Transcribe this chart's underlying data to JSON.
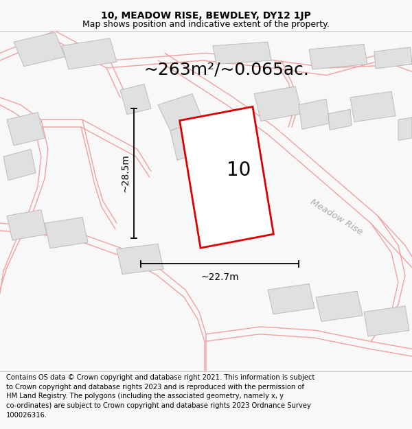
{
  "title_line1": "10, MEADOW RISE, BEWDLEY, DY12 1JP",
  "title_line2": "Map shows position and indicative extent of the property.",
  "area_text": "~263m²/~0.065ac.",
  "dim_width": "~22.7m",
  "dim_height": "~28.5m",
  "label_number": "10",
  "road_label": "Meadow Rise",
  "footer_lines": [
    "Contains OS data © Crown copyright and database right 2021. This information is subject",
    "to Crown copyright and database rights 2023 and is reproduced with the permission of",
    "HM Land Registry. The polygons (including the associated geometry, namely x, y",
    "co-ordinates) are subject to Crown copyright and database rights 2023 Ordnance Survey",
    "100026316."
  ],
  "bg_color": "#f8f8f8",
  "map_bg": "#ffffff",
  "plot_outline_color": "#dd0000",
  "building_fill": "#e0e0e0",
  "building_edge": "#bbbbbb",
  "road_line_color": "#f0a0a0",
  "title_fontsize": 10,
  "subtitle_fontsize": 9,
  "area_fontsize": 18,
  "label_fontsize": 20,
  "dim_fontsize": 10,
  "road_label_fontsize": 9.5,
  "footer_fontsize": 7.2
}
